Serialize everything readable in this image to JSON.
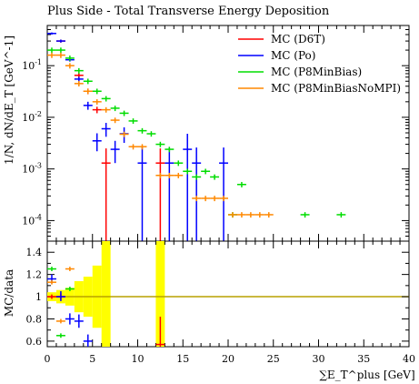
{
  "chart_data": [
    {
      "panel": "main",
      "type": "scatter",
      "title": "Plus Side - Total Transverse Energy Deposition",
      "ylabel": "1/N, dN/dE_T [GeV^-1]",
      "yscale": "log",
      "xlim": [
        0,
        40
      ],
      "ylim": [
        4e-05,
        0.6
      ],
      "ytick_labels": [
        "10^-1",
        "10^-2",
        "10^-3",
        "10^-4"
      ],
      "legend_position": "top-right",
      "series": [
        {
          "name": "MC (D6T)",
          "color": "#ff0000",
          "points": [
            {
              "x": 1.5,
              "y": 0.3,
              "lo": 0.28,
              "hi": 0.32
            },
            {
              "x": 3.5,
              "y": 0.065,
              "lo": 0.058,
              "hi": 0.072
            },
            {
              "x": 4.5,
              "y": 0.032,
              "lo": 0.028,
              "hi": 0.036
            },
            {
              "x": 5.5,
              "y": 0.014,
              "lo": 0.012,
              "hi": 0.016
            },
            {
              "x": 6.5,
              "y": 0.0013,
              "lo": 3e-05,
              "hi": 0.0025
            },
            {
              "x": 12.5,
              "y": 0.0013,
              "lo": 3e-05,
              "hi": 0.0025
            }
          ]
        },
        {
          "name": "MC (Po)",
          "color": "#0000ff",
          "points": [
            {
              "x": 0.5,
              "y": 0.42,
              "lo": 0.4,
              "hi": 0.44
            },
            {
              "x": 1.5,
              "y": 0.3,
              "lo": 0.28,
              "hi": 0.32
            },
            {
              "x": 2.5,
              "y": 0.13,
              "lo": 0.12,
              "hi": 0.14
            },
            {
              "x": 3.5,
              "y": 0.055,
              "lo": 0.049,
              "hi": 0.061
            },
            {
              "x": 4.5,
              "y": 0.017,
              "lo": 0.014,
              "hi": 0.02
            },
            {
              "x": 5.5,
              "y": 0.0035,
              "lo": 0.0022,
              "hi": 0.0049
            },
            {
              "x": 6.5,
              "y": 0.006,
              "lo": 0.0042,
              "hi": 0.0078
            },
            {
              "x": 7.5,
              "y": 0.0024,
              "lo": 0.0013,
              "hi": 0.0035
            },
            {
              "x": 8.5,
              "y": 0.0048,
              "lo": 0.0032,
              "hi": 0.0064
            },
            {
              "x": 10.5,
              "y": 0.0013,
              "lo": 3e-05,
              "hi": 0.0026
            },
            {
              "x": 13.5,
              "y": 0.0013,
              "lo": 3e-05,
              "hi": 0.0026
            },
            {
              "x": 15.5,
              "y": 0.0024,
              "lo": 3e-05,
              "hi": 0.0048
            },
            {
              "x": 16.5,
              "y": 0.0013,
              "lo": 3e-05,
              "hi": 0.0026
            },
            {
              "x": 19.5,
              "y": 0.0013,
              "lo": 3e-05,
              "hi": 0.0026
            }
          ]
        },
        {
          "name": "MC (P8MinBias)",
          "color": "#00dd00",
          "points": [
            {
              "x": 0.5,
              "y": 0.2
            },
            {
              "x": 1.5,
              "y": 0.2
            },
            {
              "x": 2.5,
              "y": 0.14
            },
            {
              "x": 3.5,
              "y": 0.08
            },
            {
              "x": 4.5,
              "y": 0.05
            },
            {
              "x": 5.5,
              "y": 0.032
            },
            {
              "x": 6.5,
              "y": 0.023
            },
            {
              "x": 7.5,
              "y": 0.015
            },
            {
              "x": 8.5,
              "y": 0.012
            },
            {
              "x": 9.5,
              "y": 0.0085
            },
            {
              "x": 10.5,
              "y": 0.0055
            },
            {
              "x": 11.5,
              "y": 0.0048
            },
            {
              "x": 12.5,
              "y": 0.003
            },
            {
              "x": 13.5,
              "y": 0.0024
            },
            {
              "x": 14.5,
              "y": 0.0013
            },
            {
              "x": 15.5,
              "y": 0.0009
            },
            {
              "x": 16.5,
              "y": 0.0007
            },
            {
              "x": 17.5,
              "y": 0.0009
            },
            {
              "x": 18.5,
              "y": 0.0007
            },
            {
              "x": 20.5,
              "y": 0.00013
            },
            {
              "x": 21.5,
              "y": 0.0005
            },
            {
              "x": 28.5,
              "y": 0.00013
            },
            {
              "x": 32.5,
              "y": 0.00013
            }
          ]
        },
        {
          "name": "MC (P8MinBiasNoMPI)",
          "color": "#ff8800",
          "points": [
            {
              "x": 0.5,
              "y": 0.16
            },
            {
              "x": 1.5,
              "y": 0.16
            },
            {
              "x": 2.5,
              "y": 0.1
            },
            {
              "x": 3.5,
              "y": 0.045
            },
            {
              "x": 4.5,
              "y": 0.032
            },
            {
              "x": 5.5,
              "y": 0.02
            },
            {
              "x": 6.5,
              "y": 0.014
            },
            {
              "x": 7.5,
              "y": 0.0088
            },
            {
              "x": 8.5,
              "y": 0.0047
            },
            {
              "x": 9.5,
              "y": 0.0027
            },
            {
              "x": 10.5,
              "y": 0.0027
            },
            {
              "x": 12.5,
              "y": 0.00075
            },
            {
              "x": 13.5,
              "y": 0.00075
            },
            {
              "x": 14.5,
              "y": 0.00075
            },
            {
              "x": 16.5,
              "y": 0.00027
            },
            {
              "x": 17.5,
              "y": 0.00027
            },
            {
              "x": 18.5,
              "y": 0.00027
            },
            {
              "x": 19.5,
              "y": 0.00027
            },
            {
              "x": 20.5,
              "y": 0.00013
            },
            {
              "x": 21.5,
              "y": 0.00013
            },
            {
              "x": 22.5,
              "y": 0.00013
            },
            {
              "x": 23.5,
              "y": 0.00013
            },
            {
              "x": 24.5,
              "y": 0.00013
            }
          ]
        }
      ]
    },
    {
      "panel": "ratio",
      "type": "scatter",
      "ylabel": "MC/data",
      "xlabel": "∑E_T^plus [GeV]",
      "xlim": [
        0,
        40
      ],
      "ylim": [
        0.55,
        1.5
      ],
      "yticks": [
        0.6,
        0.8,
        1,
        1.2,
        1.4
      ],
      "xticks": [
        0,
        5,
        10,
        15,
        20,
        25,
        30,
        35,
        40
      ],
      "reference_line": 1,
      "uncertainty_band_color": "#ffff00",
      "uncertainty_band": [
        {
          "x0": 0,
          "x1": 1,
          "lo": 0.96,
          "hi": 1.04
        },
        {
          "x0": 1,
          "x1": 2,
          "lo": 0.94,
          "hi": 1.06
        },
        {
          "x0": 2,
          "x1": 3,
          "lo": 0.92,
          "hi": 1.08
        },
        {
          "x0": 3,
          "x1": 4,
          "lo": 0.86,
          "hi": 1.14
        },
        {
          "x0": 4,
          "x1": 5,
          "lo": 0.82,
          "hi": 1.18
        },
        {
          "x0": 5,
          "x1": 6,
          "lo": 0.72,
          "hi": 1.28
        },
        {
          "x0": 6,
          "x1": 7,
          "lo": 0.55,
          "hi": 1.5
        },
        {
          "x0": 12,
          "x1": 13,
          "lo": 0.55,
          "hi": 1.5
        }
      ],
      "series": [
        {
          "name": "MC (D6T)",
          "color": "#ff0000",
          "points": [
            {
              "x": 0.5,
              "y": 1.0,
              "lo": 0.98,
              "hi": 1.02
            },
            {
              "x": 1.5,
              "y": 1.0,
              "lo": 0.97,
              "hi": 1.03
            },
            {
              "x": 12.5,
              "y": 0.57,
              "lo": 0.55,
              "hi": 0.82
            }
          ]
        },
        {
          "name": "MC (Po)",
          "color": "#0000ff",
          "points": [
            {
              "x": 0.5,
              "y": 1.16,
              "lo": 1.12,
              "hi": 1.2
            },
            {
              "x": 1.5,
              "y": 1.0,
              "lo": 0.96,
              "hi": 1.05
            },
            {
              "x": 2.5,
              "y": 0.8,
              "lo": 0.75,
              "hi": 0.85
            },
            {
              "x": 3.5,
              "y": 0.78,
              "lo": 0.72,
              "hi": 0.84
            },
            {
              "x": 4.5,
              "y": 0.6,
              "lo": 0.55,
              "hi": 0.66
            }
          ]
        },
        {
          "name": "MC (P8MinBias)",
          "color": "#00dd00",
          "points": [
            {
              "x": 0.5,
              "y": 1.25
            },
            {
              "x": 1.5,
              "y": 0.65
            },
            {
              "x": 2.5,
              "y": 1.07
            }
          ]
        },
        {
          "name": "MC (P8MinBiasNoMPI)",
          "color": "#ff8800",
          "points": [
            {
              "x": 0.5,
              "y": 1.13
            },
            {
              "x": 1.5,
              "y": 0.78
            },
            {
              "x": 2.5,
              "y": 1.25
            }
          ]
        }
      ]
    }
  ]
}
